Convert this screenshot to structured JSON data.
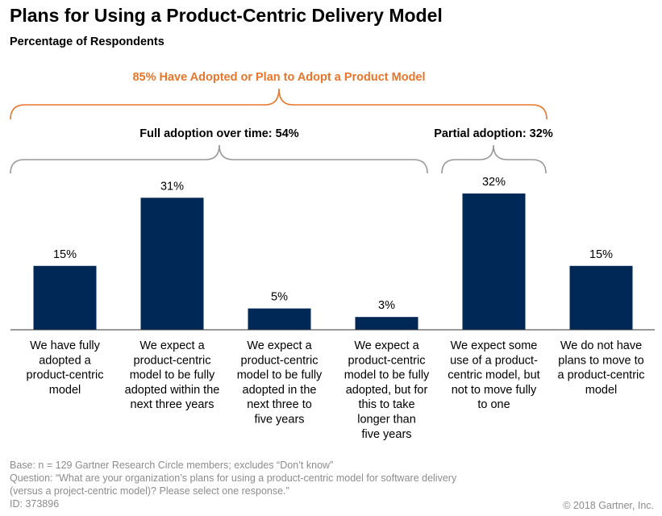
{
  "title": "Plans for Using a Product-Centric Delivery Model",
  "subtitle": "Percentage of Respondents",
  "annotations": {
    "overall": "85% Have Adopted or Plan to Adopt a Product Model",
    "full": "Full adoption over time: 54%",
    "partial": "Partial adoption: 32%"
  },
  "colors": {
    "bar": "#002856",
    "overall_bracket": "#e8752a",
    "group_bracket": "#999999"
  },
  "chart_data": {
    "type": "bar",
    "categories": [
      [
        "We have fully",
        "adopted a",
        "product-centric",
        "model"
      ],
      [
        "We expect a",
        "product-centric",
        "model to be fully",
        "adopted within the",
        "next three years"
      ],
      [
        "We expect a",
        "product-centric",
        "model to be fully",
        "adopted in the",
        "next three to",
        "five years"
      ],
      [
        "We expect a",
        "product-centric",
        "model to be fully",
        "adopted, but for",
        "this to take",
        "longer than",
        "five years"
      ],
      [
        "We expect some",
        "use of a product-",
        "centric model, but",
        "not to move fully",
        "to one"
      ],
      [
        "We do not have",
        "plans to move to",
        "a product-centric",
        "model"
      ]
    ],
    "values": [
      15,
      31,
      5,
      3,
      32,
      15
    ],
    "value_labels": [
      "15%",
      "31%",
      "5%",
      "3%",
      "32%",
      "15%"
    ],
    "ylim": [
      0,
      32
    ]
  },
  "footer": {
    "base": "Base: n = 129 Gartner Research Circle members; excludes “Don’t know”",
    "question_1": "Question: “What are your organization’s plans for using a product-centric model for software delivery",
    "question_2": "(versus a project-centric model)? Please select one response.”",
    "id": "ID: 373896",
    "copyright": "© 2018 Gartner, Inc."
  }
}
